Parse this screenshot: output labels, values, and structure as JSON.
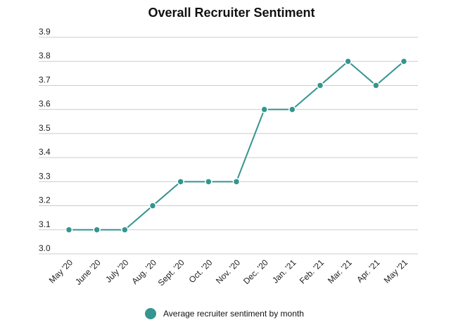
{
  "chart_data": {
    "type": "line",
    "title": "Overall Recruiter Sentiment",
    "xlabel": "",
    "ylabel": "",
    "categories": [
      "May '20",
      "June '20",
      "July '20",
      "Aug. '20",
      "Sept. '20",
      "Oct. '20",
      "Nov. '20",
      "Dec. '20",
      "Jan. '21",
      "Feb. '21",
      "Mar. '21",
      "Apr. '21",
      "May '21"
    ],
    "series": [
      {
        "name": "Average recruiter sentiment by month",
        "color": "#35958f",
        "values": [
          3.1,
          3.1,
          3.1,
          3.2,
          3.3,
          3.3,
          3.3,
          3.6,
          3.6,
          3.7,
          3.8,
          3.7,
          3.8
        ]
      }
    ],
    "ylim": [
      3.0,
      3.9
    ],
    "yticks": [
      "3.9",
      "3.8",
      "3.7",
      "3.6",
      "3.5",
      "3.4",
      "3.3",
      "3.2",
      "3.1",
      "3.0"
    ],
    "grid": true,
    "legend_position": "bottom-center"
  }
}
